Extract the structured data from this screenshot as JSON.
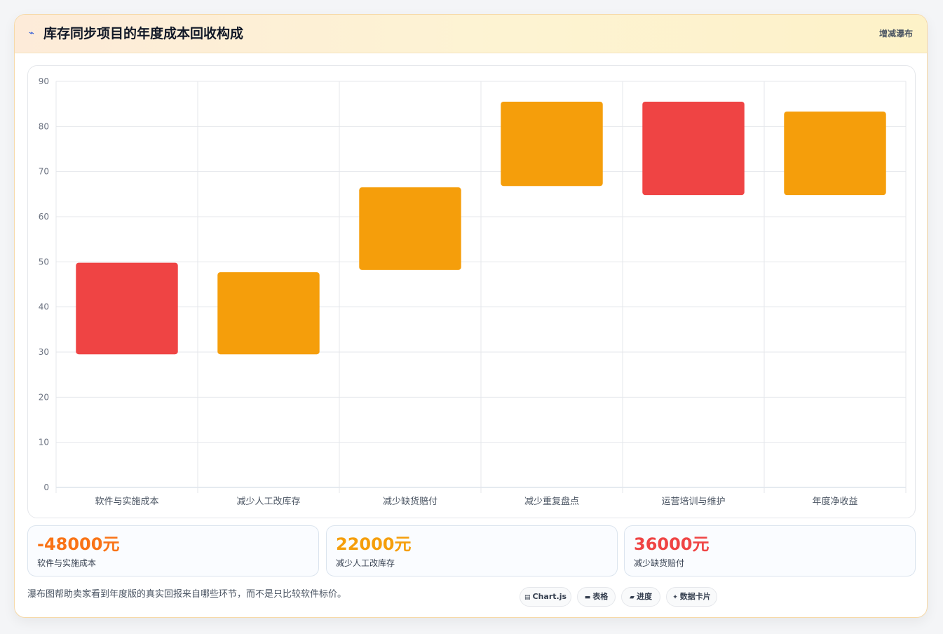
{
  "header": {
    "icon": "lightning-icon",
    "title": "库存同步项目的年度成本回收构成",
    "tag": "增减瀑布"
  },
  "chart_data": {
    "type": "bar",
    "subtype": "waterfall",
    "title": "库存同步项目的年度成本回收构成",
    "xlabel": "",
    "ylabel": "",
    "ylim": [
      0,
      90
    ],
    "y_ticks": [
      0,
      10,
      20,
      30,
      40,
      50,
      60,
      70,
      80,
      90
    ],
    "categories": [
      "软件与实施成本",
      "减少人工改库存",
      "减少缺货赔付",
      "减少重复盘点",
      "运营培训与维护",
      "年度净收益"
    ],
    "ranges": [
      [
        29.5,
        49.8
      ],
      [
        29.5,
        47.7
      ],
      [
        48.2,
        66.5
      ],
      [
        66.8,
        85.5
      ],
      [
        64.8,
        85.5
      ],
      [
        64.8,
        83.3
      ]
    ],
    "colors": [
      "#ef4444",
      "#f59e0b",
      "#f59e0b",
      "#f59e0b",
      "#ef4444",
      "#f59e0b"
    ],
    "grid": true,
    "legend": "none"
  },
  "stats": [
    {
      "value": "-48000元",
      "label": "软件与实施成本",
      "color": "#f97316"
    },
    {
      "value": "22000元",
      "label": "减少人工改库存",
      "color": "#f59e0b"
    },
    {
      "value": "36000元",
      "label": "减少缺货赔付",
      "color": "#ef4444"
    }
  ],
  "footer": {
    "note": "瀑布图帮助卖家看到年度版的真实回报来自哪些环节，而不是只比较软件标价。",
    "chips": [
      {
        "icon": "chart-icon",
        "label": "Chart.js"
      },
      {
        "icon": "table-icon",
        "label": "表格"
      },
      {
        "icon": "progress-icon",
        "label": "进度"
      },
      {
        "icon": "sparkle-icon",
        "label": "数据卡片"
      }
    ]
  }
}
